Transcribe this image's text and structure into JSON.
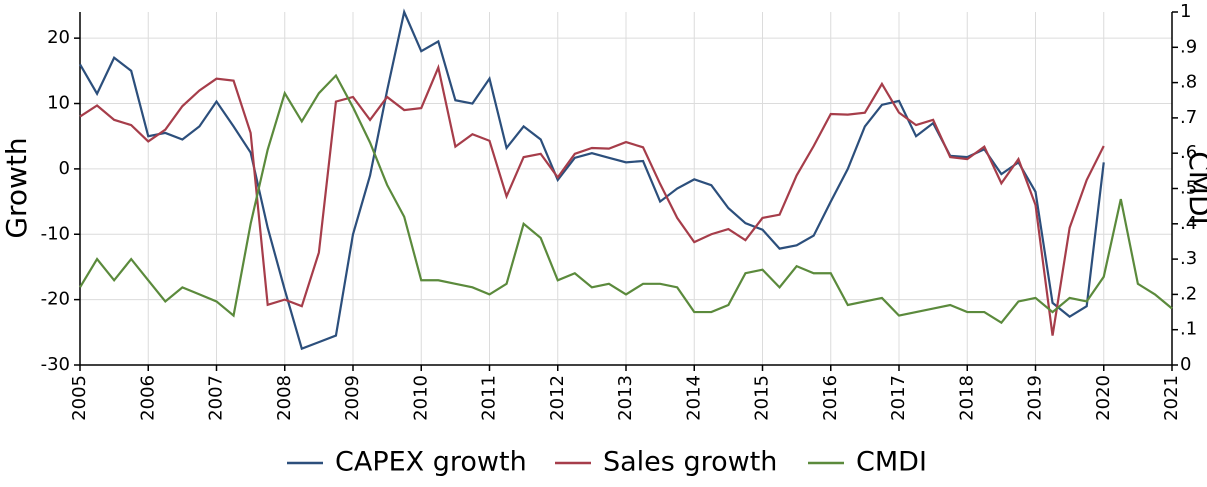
{
  "chart_data": {
    "type": "line",
    "ylabel": "Growth",
    "y2label": "CMDI",
    "x": [
      2005,
      2005.25,
      2005.5,
      2005.75,
      2006,
      2006.25,
      2006.5,
      2006.75,
      2007,
      2007.25,
      2007.5,
      2007.75,
      2008,
      2008.25,
      2008.5,
      2008.75,
      2009,
      2009.25,
      2009.5,
      2009.75,
      2010,
      2010.25,
      2010.5,
      2010.75,
      2011,
      2011.25,
      2011.5,
      2011.75,
      2012,
      2012.25,
      2012.5,
      2012.75,
      2013,
      2013.25,
      2013.5,
      2013.75,
      2014,
      2014.25,
      2014.5,
      2014.75,
      2015,
      2015.25,
      2015.5,
      2015.75,
      2016,
      2016.25,
      2016.5,
      2016.75,
      2017,
      2017.25,
      2017.5,
      2017.75,
      2018,
      2018.25,
      2018.5,
      2018.75,
      2019,
      2019.25,
      2019.5,
      2019.75,
      2020,
      2020.25,
      2020.5,
      2020.75,
      2021
    ],
    "series": [
      {
        "name": "CAPEX growth",
        "color": "#2c4f7c",
        "values": [
          16,
          11.5,
          17,
          15,
          5,
          5.5,
          4.5,
          6.5,
          10.3,
          6.5,
          2.5,
          -9,
          -18.5,
          -27.5,
          -26.5,
          -25.5,
          -10,
          -1,
          12,
          24,
          18,
          19.5,
          10.5,
          10,
          13.8,
          3.2,
          6.5,
          4.5,
          -1.7,
          1.7,
          2.4,
          1.7,
          1,
          1.2,
          -5,
          -3,
          -1.6,
          -2.5,
          -6,
          -8.3,
          -9.3,
          -12.2,
          -11.7,
          -10.2,
          -5,
          0,
          6.5,
          9.8,
          10.4,
          5,
          7,
          2,
          1.8,
          3,
          -0.8,
          1,
          -3.5,
          -20.5,
          -22.6,
          -21,
          1,
          null,
          null,
          null,
          null
        ]
      },
      {
        "name": "Sales growth",
        "color": "#a63d4a",
        "values": [
          8,
          9.7,
          7.5,
          6.7,
          4.2,
          6,
          9.6,
          12,
          13.8,
          13.5,
          5.5,
          -20.8,
          -20,
          -21,
          -12.8,
          10.3,
          11,
          7.5,
          11,
          9,
          9.3,
          15.5,
          3.4,
          5.3,
          4.3,
          -4.2,
          1.8,
          2.3,
          -1.3,
          2.3,
          3.2,
          3.1,
          4.1,
          3.3,
          -2.3,
          -7.5,
          -11.2,
          -10,
          -9.2,
          -10.9,
          -7.5,
          -7,
          -1,
          3.5,
          8.4,
          8.3,
          8.6,
          13,
          8.6,
          6.7,
          7.5,
          1.8,
          1.5,
          3.4,
          -2.2,
          1.5,
          -5.5,
          -25.5,
          -9,
          -1.7,
          3.5,
          null,
          null,
          null,
          null
        ]
      },
      {
        "name": "CMDI",
        "color": "#5b8a3c",
        "axis": "y2",
        "values": [
          0.22,
          0.3,
          0.24,
          0.3,
          0.24,
          0.18,
          0.22,
          0.2,
          0.18,
          0.14,
          0.4,
          0.61,
          0.77,
          0.69,
          0.77,
          0.82,
          0.73,
          0.63,
          0.51,
          0.42,
          0.24,
          0.24,
          0.23,
          0.22,
          0.2,
          0.23,
          0.4,
          0.36,
          0.24,
          0.26,
          0.22,
          0.23,
          0.2,
          0.23,
          0.23,
          0.22,
          0.15,
          0.15,
          0.17,
          0.26,
          0.27,
          0.22,
          0.28,
          0.26,
          0.26,
          0.17,
          0.18,
          0.19,
          0.14,
          0.15,
          0.16,
          0.17,
          0.15,
          0.15,
          0.12,
          0.18,
          0.19,
          0.15,
          0.19,
          0.18,
          0.25,
          0.47,
          0.23,
          0.2,
          0.16
        ]
      }
    ],
    "xlim": [
      2005,
      2021
    ],
    "xticks": [
      2005,
      2006,
      2007,
      2008,
      2009,
      2010,
      2011,
      2012,
      2013,
      2014,
      2015,
      2016,
      2017,
      2018,
      2019,
      2020,
      2021
    ],
    "ylim": [
      -30,
      24
    ],
    "yticks": [
      -30,
      -20,
      -10,
      0,
      10,
      20
    ],
    "y2lim": [
      0,
      1
    ],
    "y2ticks": [
      0,
      {
        "value": 0.1,
        "label": ".1"
      },
      {
        "value": 0.2,
        "label": ".2"
      },
      {
        "value": 0.3,
        "label": ".3"
      },
      {
        "value": 0.4,
        "label": ".4"
      },
      {
        "value": 0.5,
        "label": ".5"
      },
      {
        "value": 0.6,
        "label": ".6"
      },
      {
        "value": 0.7,
        "label": ".7"
      },
      {
        "value": 0.8,
        "label": ".8"
      },
      {
        "value": 0.9,
        "label": ".9"
      },
      1
    ],
    "grid": true,
    "legend": "bottom"
  }
}
